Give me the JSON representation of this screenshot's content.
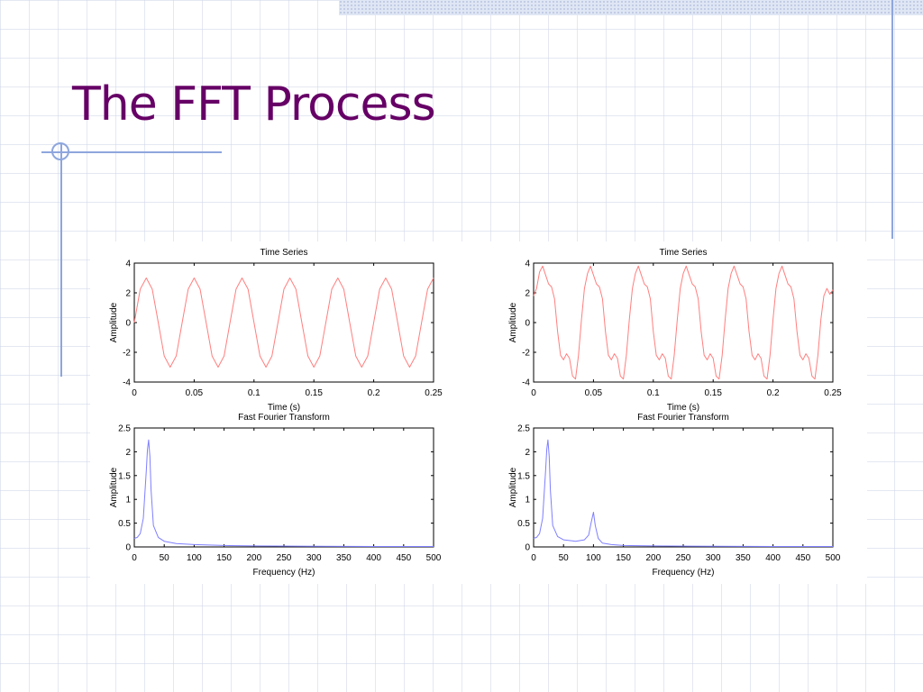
{
  "slide": {
    "title": "The FFT Process"
  },
  "colors": {
    "title": "#660066",
    "accent_lines": "#8ea6dd",
    "time_series_line": "#ff7f7f",
    "fft_line": "#7f7fff"
  },
  "chart_data": [
    {
      "type": "line",
      "title": "Time Series",
      "xlabel": "Time (s)",
      "ylabel": "Amplitude",
      "xlim": [
        0,
        0.25
      ],
      "ylim": [
        -4,
        4
      ],
      "xticks": [
        0,
        0.05,
        0.1,
        0.15,
        0.2,
        0.25
      ],
      "xtick_labels": [
        "0",
        "0.05",
        "0.1",
        "0.15",
        "0.2",
        "0.25"
      ],
      "yticks": [
        -4,
        -2,
        0,
        2,
        4
      ],
      "ytick_labels": [
        "-4",
        "-2",
        "0",
        "2",
        "4"
      ],
      "series": [
        {
          "color": "#ff7f7f",
          "points": [
            [
              0,
              0
            ],
            [
              0.005,
              2.25
            ],
            [
              0.01,
              3
            ],
            [
              0.015,
              2.25
            ],
            [
              0.02,
              0
            ],
            [
              0.025,
              -2.25
            ],
            [
              0.03,
              -3
            ],
            [
              0.035,
              -2.25
            ],
            [
              0.04,
              0
            ],
            [
              0.045,
              2.25
            ],
            [
              0.05,
              3
            ],
            [
              0.055,
              2.25
            ],
            [
              0.06,
              0
            ],
            [
              0.065,
              -2.25
            ],
            [
              0.07,
              -3
            ],
            [
              0.075,
              -2.25
            ],
            [
              0.08,
              0
            ],
            [
              0.085,
              2.25
            ],
            [
              0.09,
              3
            ],
            [
              0.095,
              2.25
            ],
            [
              0.1,
              0
            ],
            [
              0.105,
              -2.25
            ],
            [
              0.11,
              -3
            ],
            [
              0.115,
              -2.25
            ],
            [
              0.12,
              0
            ],
            [
              0.125,
              2.25
            ],
            [
              0.13,
              3
            ],
            [
              0.135,
              2.25
            ],
            [
              0.14,
              0
            ],
            [
              0.145,
              -2.25
            ],
            [
              0.15,
              -3
            ],
            [
              0.155,
              -2.25
            ],
            [
              0.16,
              0
            ],
            [
              0.165,
              2.25
            ],
            [
              0.17,
              3
            ],
            [
              0.175,
              2.25
            ],
            [
              0.18,
              0
            ],
            [
              0.185,
              -2.25
            ],
            [
              0.19,
              -3
            ],
            [
              0.195,
              -2.25
            ],
            [
              0.2,
              0
            ],
            [
              0.205,
              2.25
            ],
            [
              0.21,
              3
            ],
            [
              0.215,
              2.25
            ],
            [
              0.22,
              0
            ],
            [
              0.225,
              -2.25
            ],
            [
              0.23,
              -3
            ],
            [
              0.235,
              -2.25
            ],
            [
              0.24,
              0
            ],
            [
              0.245,
              2.25
            ],
            [
              0.25,
              3
            ]
          ]
        }
      ]
    },
    {
      "type": "line",
      "title": "Time Series",
      "xlabel": "Time (s)",
      "ylabel": "Amplitude",
      "xlim": [
        0,
        0.25
      ],
      "ylim": [
        -4,
        4
      ],
      "xticks": [
        0,
        0.05,
        0.1,
        0.15,
        0.2,
        0.25
      ],
      "xtick_labels": [
        "0",
        "0.05",
        "0.1",
        "0.15",
        "0.2",
        "0.25"
      ],
      "yticks": [
        -4,
        -2,
        0,
        2,
        4
      ],
      "ytick_labels": [
        "-4",
        "-2",
        "0",
        "2",
        "4"
      ],
      "series": [
        {
          "color": "#ff7f7f",
          "points": [
            [
              0,
              1.8
            ],
            [
              0.0025,
              2.3
            ],
            [
              0.005,
              3.4
            ],
            [
              0.0075,
              3.8
            ],
            [
              0.01,
              3.2
            ],
            [
              0.0125,
              2.6
            ],
            [
              0.015,
              2.4
            ],
            [
              0.0175,
              1.6
            ],
            [
              0.02,
              -0.6
            ],
            [
              0.0225,
              -2.2
            ],
            [
              0.025,
              -2.5
            ],
            [
              0.0275,
              -2.1
            ],
            [
              0.03,
              -2.4
            ],
            [
              0.0325,
              -3.6
            ],
            [
              0.035,
              -3.8
            ],
            [
              0.0375,
              -2.2
            ],
            [
              0.04,
              0.2
            ],
            [
              0.0425,
              2.3
            ],
            [
              0.045,
              3.3
            ],
            [
              0.0475,
              3.8
            ],
            [
              0.05,
              3.2
            ],
            [
              0.0525,
              2.6
            ],
            [
              0.055,
              2.4
            ],
            [
              0.0575,
              1.6
            ],
            [
              0.06,
              -0.6
            ],
            [
              0.0625,
              -2.2
            ],
            [
              0.065,
              -2.5
            ],
            [
              0.0675,
              -2.1
            ],
            [
              0.07,
              -2.4
            ],
            [
              0.0725,
              -3.6
            ],
            [
              0.075,
              -3.8
            ],
            [
              0.0775,
              -2.2
            ],
            [
              0.08,
              0.2
            ],
            [
              0.0825,
              2.3
            ],
            [
              0.085,
              3.3
            ],
            [
              0.0875,
              3.8
            ],
            [
              0.09,
              3.2
            ],
            [
              0.0925,
              2.6
            ],
            [
              0.095,
              2.4
            ],
            [
              0.0975,
              1.6
            ],
            [
              0.1,
              -0.6
            ],
            [
              0.1025,
              -2.2
            ],
            [
              0.105,
              -2.5
            ],
            [
              0.1075,
              -2.1
            ],
            [
              0.11,
              -2.4
            ],
            [
              0.1125,
              -3.6
            ],
            [
              0.115,
              -3.8
            ],
            [
              0.1175,
              -2.2
            ],
            [
              0.12,
              0.2
            ],
            [
              0.1225,
              2.3
            ],
            [
              0.125,
              3.3
            ],
            [
              0.1275,
              3.8
            ],
            [
              0.13,
              3.2
            ],
            [
              0.1325,
              2.6
            ],
            [
              0.135,
              2.4
            ],
            [
              0.1375,
              1.6
            ],
            [
              0.14,
              -0.6
            ],
            [
              0.1425,
              -2.2
            ],
            [
              0.145,
              -2.5
            ],
            [
              0.1475,
              -2.1
            ],
            [
              0.15,
              -2.4
            ],
            [
              0.1525,
              -3.6
            ],
            [
              0.155,
              -3.8
            ],
            [
              0.1575,
              -2.2
            ],
            [
              0.16,
              0.2
            ],
            [
              0.1625,
              2.3
            ],
            [
              0.165,
              3.3
            ],
            [
              0.1675,
              3.8
            ],
            [
              0.17,
              3.2
            ],
            [
              0.1725,
              2.6
            ],
            [
              0.175,
              2.4
            ],
            [
              0.1775,
              1.6
            ],
            [
              0.18,
              -0.6
            ],
            [
              0.1825,
              -2.2
            ],
            [
              0.185,
              -2.5
            ],
            [
              0.1875,
              -2.1
            ],
            [
              0.19,
              -2.4
            ],
            [
              0.1925,
              -3.6
            ],
            [
              0.195,
              -3.8
            ],
            [
              0.1975,
              -2.2
            ],
            [
              0.2,
              0.2
            ],
            [
              0.2025,
              2.3
            ],
            [
              0.205,
              3.3
            ],
            [
              0.2075,
              3.8
            ],
            [
              0.21,
              3.2
            ],
            [
              0.2125,
              2.6
            ],
            [
              0.215,
              2.4
            ],
            [
              0.2175,
              1.6
            ],
            [
              0.22,
              -0.6
            ],
            [
              0.2225,
              -2.2
            ],
            [
              0.225,
              -2.5
            ],
            [
              0.2275,
              -2.1
            ],
            [
              0.23,
              -2.4
            ],
            [
              0.2325,
              -3.6
            ],
            [
              0.235,
              -3.8
            ],
            [
              0.2375,
              -2.2
            ],
            [
              0.24,
              0.2
            ],
            [
              0.2425,
              1.8
            ],
            [
              0.245,
              2.3
            ],
            [
              0.2475,
              1.9
            ],
            [
              0.25,
              2.2
            ]
          ]
        }
      ]
    },
    {
      "type": "line",
      "title": "Fast Fourier Transform",
      "xlabel": "Frequency (Hz)",
      "ylabel": "Amplitude",
      "xlim": [
        0,
        500
      ],
      "ylim": [
        0,
        2.5
      ],
      "xticks": [
        0,
        50,
        100,
        150,
        200,
        250,
        300,
        350,
        400,
        450,
        500
      ],
      "xtick_labels": [
        "0",
        "50",
        "100",
        "150",
        "200",
        "250",
        "300",
        "350",
        "400",
        "450",
        "500"
      ],
      "yticks": [
        0,
        0.5,
        1,
        1.5,
        2,
        2.5
      ],
      "ytick_labels": [
        "0",
        "0.5",
        "1",
        "1.5",
        "2",
        "2.5"
      ],
      "series": [
        {
          "color": "#7f7fff",
          "points": [
            [
              0,
              0.18
            ],
            [
              5,
              0.2
            ],
            [
              10,
              0.28
            ],
            [
              15,
              0.6
            ],
            [
              20,
              1.6
            ],
            [
              22,
              2.05
            ],
            [
              24,
              2.25
            ],
            [
              26,
              1.9
            ],
            [
              28,
              1.2
            ],
            [
              32,
              0.45
            ],
            [
              40,
              0.2
            ],
            [
              50,
              0.12
            ],
            [
              70,
              0.07
            ],
            [
              100,
              0.05
            ],
            [
              150,
              0.03
            ],
            [
              200,
              0.02
            ],
            [
              300,
              0.015
            ],
            [
              400,
              0.01
            ],
            [
              500,
              0.01
            ]
          ]
        }
      ]
    },
    {
      "type": "line",
      "title": "Fast Fourier Transform",
      "xlabel": "Frequency (Hz)",
      "ylabel": "Amplitude",
      "xlim": [
        0,
        500
      ],
      "ylim": [
        0,
        2.5
      ],
      "xticks": [
        0,
        50,
        100,
        150,
        200,
        250,
        300,
        350,
        400,
        450,
        500
      ],
      "xtick_labels": [
        "0",
        "50",
        "100",
        "150",
        "200",
        "250",
        "300",
        "350",
        "400",
        "450",
        "500"
      ],
      "yticks": [
        0,
        0.5,
        1,
        1.5,
        2,
        2.5
      ],
      "ytick_labels": [
        "0",
        "0.5",
        "1",
        "1.5",
        "2",
        "2.5"
      ],
      "series": [
        {
          "color": "#7f7fff",
          "points": [
            [
              0,
              0.18
            ],
            [
              5,
              0.2
            ],
            [
              10,
              0.28
            ],
            [
              15,
              0.6
            ],
            [
              20,
              1.6
            ],
            [
              22,
              2.05
            ],
            [
              24,
              2.25
            ],
            [
              26,
              1.9
            ],
            [
              28,
              1.2
            ],
            [
              32,
              0.45
            ],
            [
              40,
              0.22
            ],
            [
              50,
              0.15
            ],
            [
              70,
              0.12
            ],
            [
              85,
              0.15
            ],
            [
              92,
              0.25
            ],
            [
              96,
              0.5
            ],
            [
              100,
              0.73
            ],
            [
              103,
              0.45
            ],
            [
              108,
              0.18
            ],
            [
              115,
              0.08
            ],
            [
              130,
              0.05
            ],
            [
              150,
              0.03
            ],
            [
              200,
              0.02
            ],
            [
              300,
              0.015
            ],
            [
              400,
              0.01
            ],
            [
              500,
              0.01
            ]
          ]
        }
      ]
    }
  ]
}
